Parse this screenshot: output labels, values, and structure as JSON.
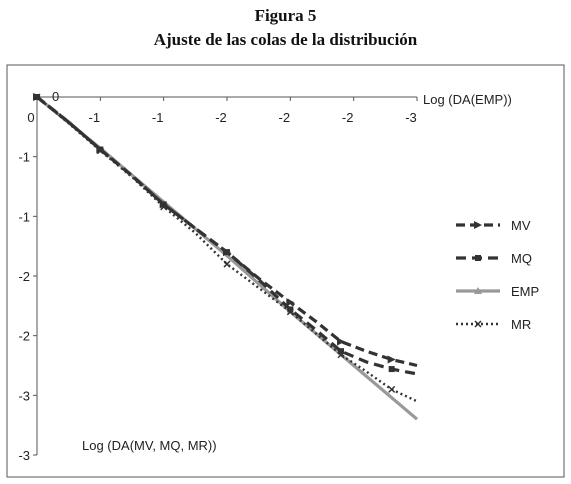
{
  "figure": {
    "label": "Figura 5",
    "title": "Ajuste de las colas de la distribución"
  },
  "chart_data": {
    "type": "line",
    "x_axis": {
      "label": "Log (DA(EMP))",
      "range": [
        0,
        -3
      ],
      "ticks": [
        0,
        -0.5,
        -1,
        -1.5,
        -2,
        -2.5,
        -3
      ],
      "tick_labels": [
        "0",
        "-1",
        "-1",
        "-2",
        "-2",
        "-2",
        "-3"
      ],
      "position": "top"
    },
    "y_axis": {
      "label": "Log (DA(MV, MQ, MR))",
      "range": [
        0,
        -3
      ],
      "ticks": [
        0,
        -0.5,
        -1,
        -1.5,
        -2,
        -2.5,
        -3
      ],
      "tick_labels": [
        "0",
        "-1",
        "-1",
        "-2",
        "-2",
        "-3",
        "-3"
      ]
    },
    "legend_position": "right",
    "grid": false,
    "series": [
      {
        "name": "MV",
        "style": "dash-arrow",
        "color": "#333333",
        "x": [
          0,
          -0.25,
          -0.5,
          -0.75,
          -1.0,
          -1.25,
          -1.5,
          -1.75,
          -2.0,
          -2.2,
          -2.4,
          -2.6,
          -2.8,
          -3.0
        ],
        "y": [
          0,
          -0.21,
          -0.44,
          -0.66,
          -0.9,
          -1.1,
          -1.3,
          -1.52,
          -1.72,
          -1.88,
          -2.05,
          -2.13,
          -2.2,
          -2.25
        ]
      },
      {
        "name": "MQ",
        "style": "dash-square",
        "color": "#333333",
        "x": [
          0,
          -0.25,
          -0.5,
          -0.75,
          -1.0,
          -1.25,
          -1.5,
          -1.75,
          -2.0,
          -2.2,
          -2.4,
          -2.6,
          -2.8,
          -3.0
        ],
        "y": [
          0,
          -0.21,
          -0.44,
          -0.66,
          -0.9,
          -1.1,
          -1.3,
          -1.53,
          -1.78,
          -1.95,
          -2.13,
          -2.22,
          -2.28,
          -2.32
        ]
      },
      {
        "name": "EMP",
        "style": "solid",
        "color": "#999999",
        "x": [
          0,
          -0.5,
          -1.0,
          -1.5,
          -2.0,
          -2.5,
          -3.0
        ],
        "y": [
          0,
          -0.43,
          -0.88,
          -1.33,
          -1.8,
          -2.25,
          -2.7
        ]
      },
      {
        "name": "MR",
        "style": "dot-x",
        "color": "#333333",
        "x": [
          0,
          -0.25,
          -0.5,
          -0.75,
          -1.0,
          -1.25,
          -1.5,
          -1.75,
          -2.0,
          -2.2,
          -2.4,
          -2.6,
          -2.8,
          -3.0
        ],
        "y": [
          0,
          -0.22,
          -0.45,
          -0.67,
          -0.92,
          -1.14,
          -1.4,
          -1.6,
          -1.8,
          -1.98,
          -2.16,
          -2.3,
          -2.45,
          -2.55
        ]
      }
    ]
  }
}
